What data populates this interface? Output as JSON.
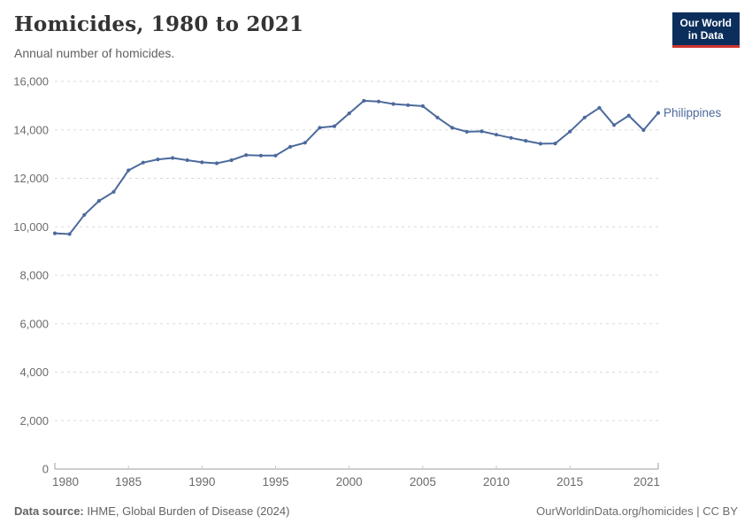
{
  "header": {
    "title": "Homicides, 1980 to 2021",
    "subtitle": "Annual number of homicides.",
    "logo": {
      "line1": "Our World",
      "line2": "in Data",
      "bg_color": "#0c2e5c",
      "accent_color": "#cf352e"
    }
  },
  "chart_data": {
    "type": "line",
    "title": "Homicides, 1980 to 2021",
    "subtitle": "Annual number of homicides.",
    "xlabel": "",
    "ylabel": "",
    "xlim": [
      1980,
      2021
    ],
    "ylim": [
      0,
      16000
    ],
    "y_ticks": [
      0,
      2000,
      4000,
      6000,
      8000,
      10000,
      12000,
      14000,
      16000
    ],
    "x_ticks": [
      1980,
      1985,
      1990,
      1995,
      2000,
      2005,
      2010,
      2015,
      2021
    ],
    "grid": "horizontal-dashed",
    "legend": "end-of-line-label",
    "grid_color": "#dadada",
    "axis_color": "#9e9e9e",
    "tick_label_color": "#6b6b6b",
    "series": [
      {
        "name": "Philippines",
        "color": "#4C6A9C",
        "x": [
          1980,
          1981,
          1982,
          1983,
          1984,
          1985,
          1986,
          1987,
          1988,
          1989,
          1990,
          1991,
          1992,
          1993,
          1994,
          1995,
          1996,
          1997,
          1998,
          1999,
          2000,
          2001,
          2002,
          2003,
          2004,
          2005,
          2006,
          2007,
          2008,
          2009,
          2010,
          2011,
          2012,
          2013,
          2014,
          2015,
          2016,
          2017,
          2018,
          2019,
          2020,
          2021
        ],
        "values": [
          9730,
          9700,
          10490,
          11070,
          11440,
          12330,
          12650,
          12780,
          12840,
          12750,
          12660,
          12620,
          12750,
          12960,
          12940,
          12940,
          13300,
          13470,
          14090,
          14150,
          14680,
          15200,
          15170,
          15070,
          15020,
          14980,
          14510,
          14090,
          13920,
          13940,
          13800,
          13670,
          13550,
          13430,
          13440,
          13930,
          14510,
          14910,
          14200,
          14590,
          13990,
          14700
        ]
      }
    ]
  },
  "footer": {
    "source_label": "Data source:",
    "source_text": " IHME, Global Burden of Disease (2024)",
    "credit": "OurWorldinData.org/homicides | CC BY"
  }
}
